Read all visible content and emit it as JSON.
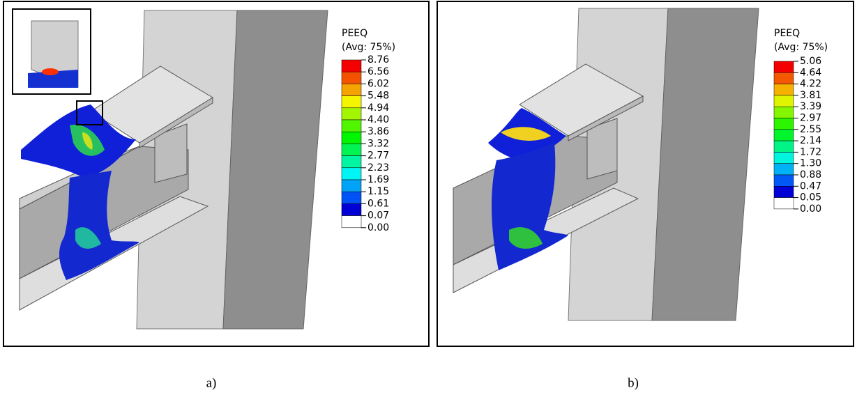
{
  "panels": [
    {
      "caption": "a)",
      "legend": {
        "title": "PEEQ",
        "subtitle": "(Avg: 75%)",
        "labels": [
          "8.76",
          "6.56",
          "6.02",
          "5.48",
          "4.94",
          "4.40",
          "3.86",
          "3.32",
          "2.77",
          "2.23",
          "1.69",
          "1.15",
          "0.61",
          "0.07",
          "0.00"
        ]
      }
    },
    {
      "caption": "b)",
      "legend": {
        "title": "PEEQ",
        "subtitle": "(Avg: 75%)",
        "labels": [
          "5.06",
          "4.64",
          "4.22",
          "3.81",
          "3.39",
          "2.97",
          "2.55",
          "2.14",
          "1.72",
          "1.30",
          "0.88",
          "0.47",
          "0.05",
          "0.00"
        ]
      }
    }
  ]
}
